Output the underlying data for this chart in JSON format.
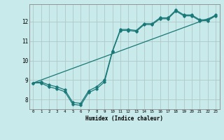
{
  "xlabel": "Humidex (Indice chaleur)",
  "background_color": "#c8eaea",
  "line_color": "#1a7878",
  "grid_color": "#b0c8c8",
  "xlim": [
    -0.5,
    23.5
  ],
  "ylim": [
    7.5,
    12.9
  ],
  "xticks": [
    0,
    1,
    2,
    3,
    4,
    5,
    6,
    7,
    8,
    9,
    10,
    11,
    12,
    13,
    14,
    15,
    16,
    17,
    18,
    19,
    20,
    21,
    22,
    23
  ],
  "yticks": [
    8,
    9,
    10,
    11,
    12
  ],
  "line1_x": [
    0,
    1,
    2,
    3,
    4,
    5,
    6,
    7,
    8,
    9,
    10,
    11,
    12,
    13,
    14,
    15,
    16,
    17,
    18,
    19,
    20,
    21,
    22,
    23
  ],
  "line1_y": [
    8.85,
    8.85,
    8.65,
    8.55,
    8.4,
    7.75,
    7.7,
    8.35,
    8.55,
    8.9,
    10.45,
    11.55,
    11.55,
    11.5,
    11.85,
    11.85,
    12.15,
    12.15,
    12.55,
    12.3,
    12.3,
    12.05,
    12.05,
    12.3
  ],
  "line2_x": [
    0,
    1,
    2,
    3,
    4,
    5,
    6,
    7,
    8,
    9,
    10,
    11,
    12,
    13,
    14,
    15,
    16,
    17,
    18,
    19,
    20,
    21,
    22,
    23
  ],
  "line2_y": [
    8.85,
    8.9,
    8.75,
    8.65,
    8.5,
    7.85,
    7.8,
    8.45,
    8.65,
    9.0,
    10.5,
    11.6,
    11.6,
    11.55,
    11.9,
    11.9,
    12.2,
    12.2,
    12.6,
    12.35,
    12.35,
    12.1,
    12.1,
    12.35
  ],
  "line3_x": [
    0,
    23
  ],
  "line3_y": [
    8.85,
    12.3
  ]
}
